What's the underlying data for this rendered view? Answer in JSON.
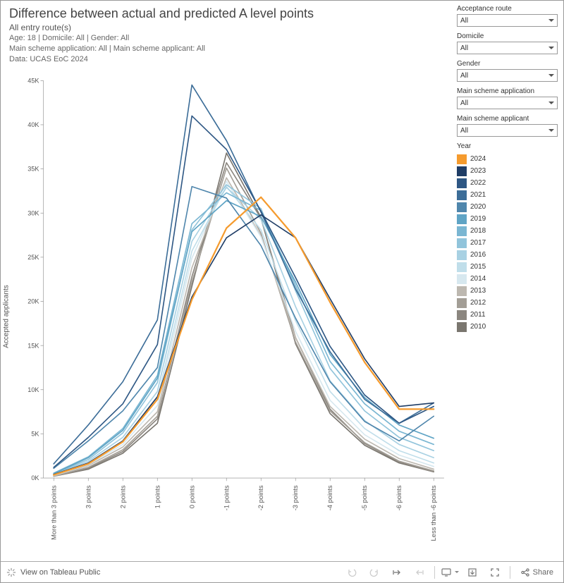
{
  "header": {
    "title": "Difference between actual and predicted A level points",
    "subtitle": "All entry route(s)",
    "line1": "Age: 18 | Domicile: All | Gender: All",
    "line2": "Main scheme application: All | Main scheme applicant: All",
    "line3": "Data: UCAS EoC 2024"
  },
  "chart": {
    "type": "line",
    "yaxis_label": "Accepted applicants",
    "ylim": [
      0,
      45000
    ],
    "ytick_step": 5000,
    "ytick_labels": [
      "0K",
      "5K",
      "10K",
      "15K",
      "20K",
      "25K",
      "30K",
      "35K",
      "40K",
      "45K"
    ],
    "x_categories": [
      "More than 3 points",
      "3 points",
      "2 points",
      "1 points",
      "0 points",
      "-1 points",
      "-2 points",
      "-3 points",
      "-4 points",
      "-5 points",
      "-6 points",
      "Less than -6 points"
    ],
    "line_width": 1.6,
    "highlight_line_width": 2.2,
    "axis_color": "#888888",
    "background_color": "#ffffff",
    "series": [
      {
        "year": "2010",
        "color": "#7a766f",
        "values": [
          200,
          1000,
          2800,
          6200,
          21700,
          36800,
          29500,
          15200,
          7300,
          3700,
          1700,
          700
        ]
      },
      {
        "year": "2011",
        "color": "#8b867f",
        "values": [
          200,
          1100,
          3000,
          6700,
          22800,
          35700,
          29400,
          15900,
          7800,
          3900,
          1800,
          700
        ]
      },
      {
        "year": "2012",
        "color": "#a39e96",
        "values": [
          200,
          1200,
          3200,
          7000,
          22200,
          35100,
          27700,
          15400,
          7600,
          4000,
          1900,
          800
        ]
      },
      {
        "year": "2013",
        "color": "#bdb8b0",
        "values": [
          250,
          1400,
          3500,
          7500,
          23800,
          34000,
          27400,
          15900,
          8100,
          4400,
          2200,
          1000
        ]
      },
      {
        "year": "2014",
        "color": "#d7e8ef",
        "values": [
          300,
          1500,
          3800,
          8200,
          24900,
          33600,
          27300,
          16600,
          8800,
          4900,
          2600,
          1300
        ]
      },
      {
        "year": "2015",
        "color": "#c0deea",
        "values": [
          350,
          1700,
          4200,
          8900,
          25700,
          33000,
          28100,
          17800,
          9800,
          5600,
          3100,
          1700
        ]
      },
      {
        "year": "2016",
        "color": "#a8d1e3",
        "values": [
          400,
          1900,
          4600,
          9800,
          26800,
          32900,
          29300,
          19400,
          11000,
          6500,
          3800,
          2300
        ]
      },
      {
        "year": "2017",
        "color": "#91c4db",
        "values": [
          450,
          2100,
          5100,
          10800,
          28100,
          33200,
          30500,
          21200,
          12400,
          7600,
          4600,
          3100
        ]
      },
      {
        "year": "2018",
        "color": "#7ab6d2",
        "values": [
          550,
          2400,
          5600,
          11600,
          28800,
          32300,
          30300,
          21800,
          13200,
          8400,
          5300,
          3800
        ]
      },
      {
        "year": "2019",
        "color": "#5fa4c5",
        "values": [
          500,
          2300,
          5400,
          11300,
          27900,
          31400,
          29600,
          22200,
          14000,
          9100,
          6000,
          4500
        ]
      },
      {
        "year": "2020",
        "color": "#4f86ac",
        "values": [
          1100,
          4200,
          7600,
          12500,
          33000,
          31700,
          26300,
          18100,
          10900,
          6400,
          4200,
          7000
        ]
      },
      {
        "year": "2021",
        "color": "#3c6d98",
        "values": [
          1600,
          6000,
          10900,
          17900,
          44500,
          38200,
          30100,
          21400,
          14300,
          8900,
          6200,
          8500
        ]
      },
      {
        "year": "2022",
        "color": "#2e5784",
        "values": [
          1200,
          4600,
          8400,
          15100,
          41000,
          37200,
          30200,
          22700,
          14900,
          9400,
          6200,
          8100
        ]
      },
      {
        "year": "2023",
        "color": "#1f3d66",
        "values": [
          400,
          1700,
          4200,
          9200,
          20500,
          27200,
          29800,
          27200,
          20300,
          13500,
          8100,
          8500
        ]
      },
      {
        "year": "2024",
        "color": "#f59b2e",
        "values": [
          350,
          1600,
          4100,
          8900,
          20200,
          28300,
          31800,
          27200,
          19900,
          13100,
          7800,
          7800
        ]
      }
    ],
    "highlight_year": "2024"
  },
  "legend": {
    "title": "Year",
    "items_order": [
      "2024",
      "2023",
      "2022",
      "2021",
      "2020",
      "2019",
      "2018",
      "2017",
      "2016",
      "2015",
      "2014",
      "2013",
      "2012",
      "2011",
      "2010"
    ]
  },
  "filters": [
    {
      "label": "Acceptance route",
      "value": "All"
    },
    {
      "label": "Domicile",
      "value": "All"
    },
    {
      "label": "Gender",
      "value": "All"
    },
    {
      "label": "Main scheme application",
      "value": "All"
    },
    {
      "label": "Main scheme applicant",
      "value": "All"
    }
  ],
  "footer": {
    "view_text": "View on Tableau Public",
    "share_label": "Share"
  }
}
